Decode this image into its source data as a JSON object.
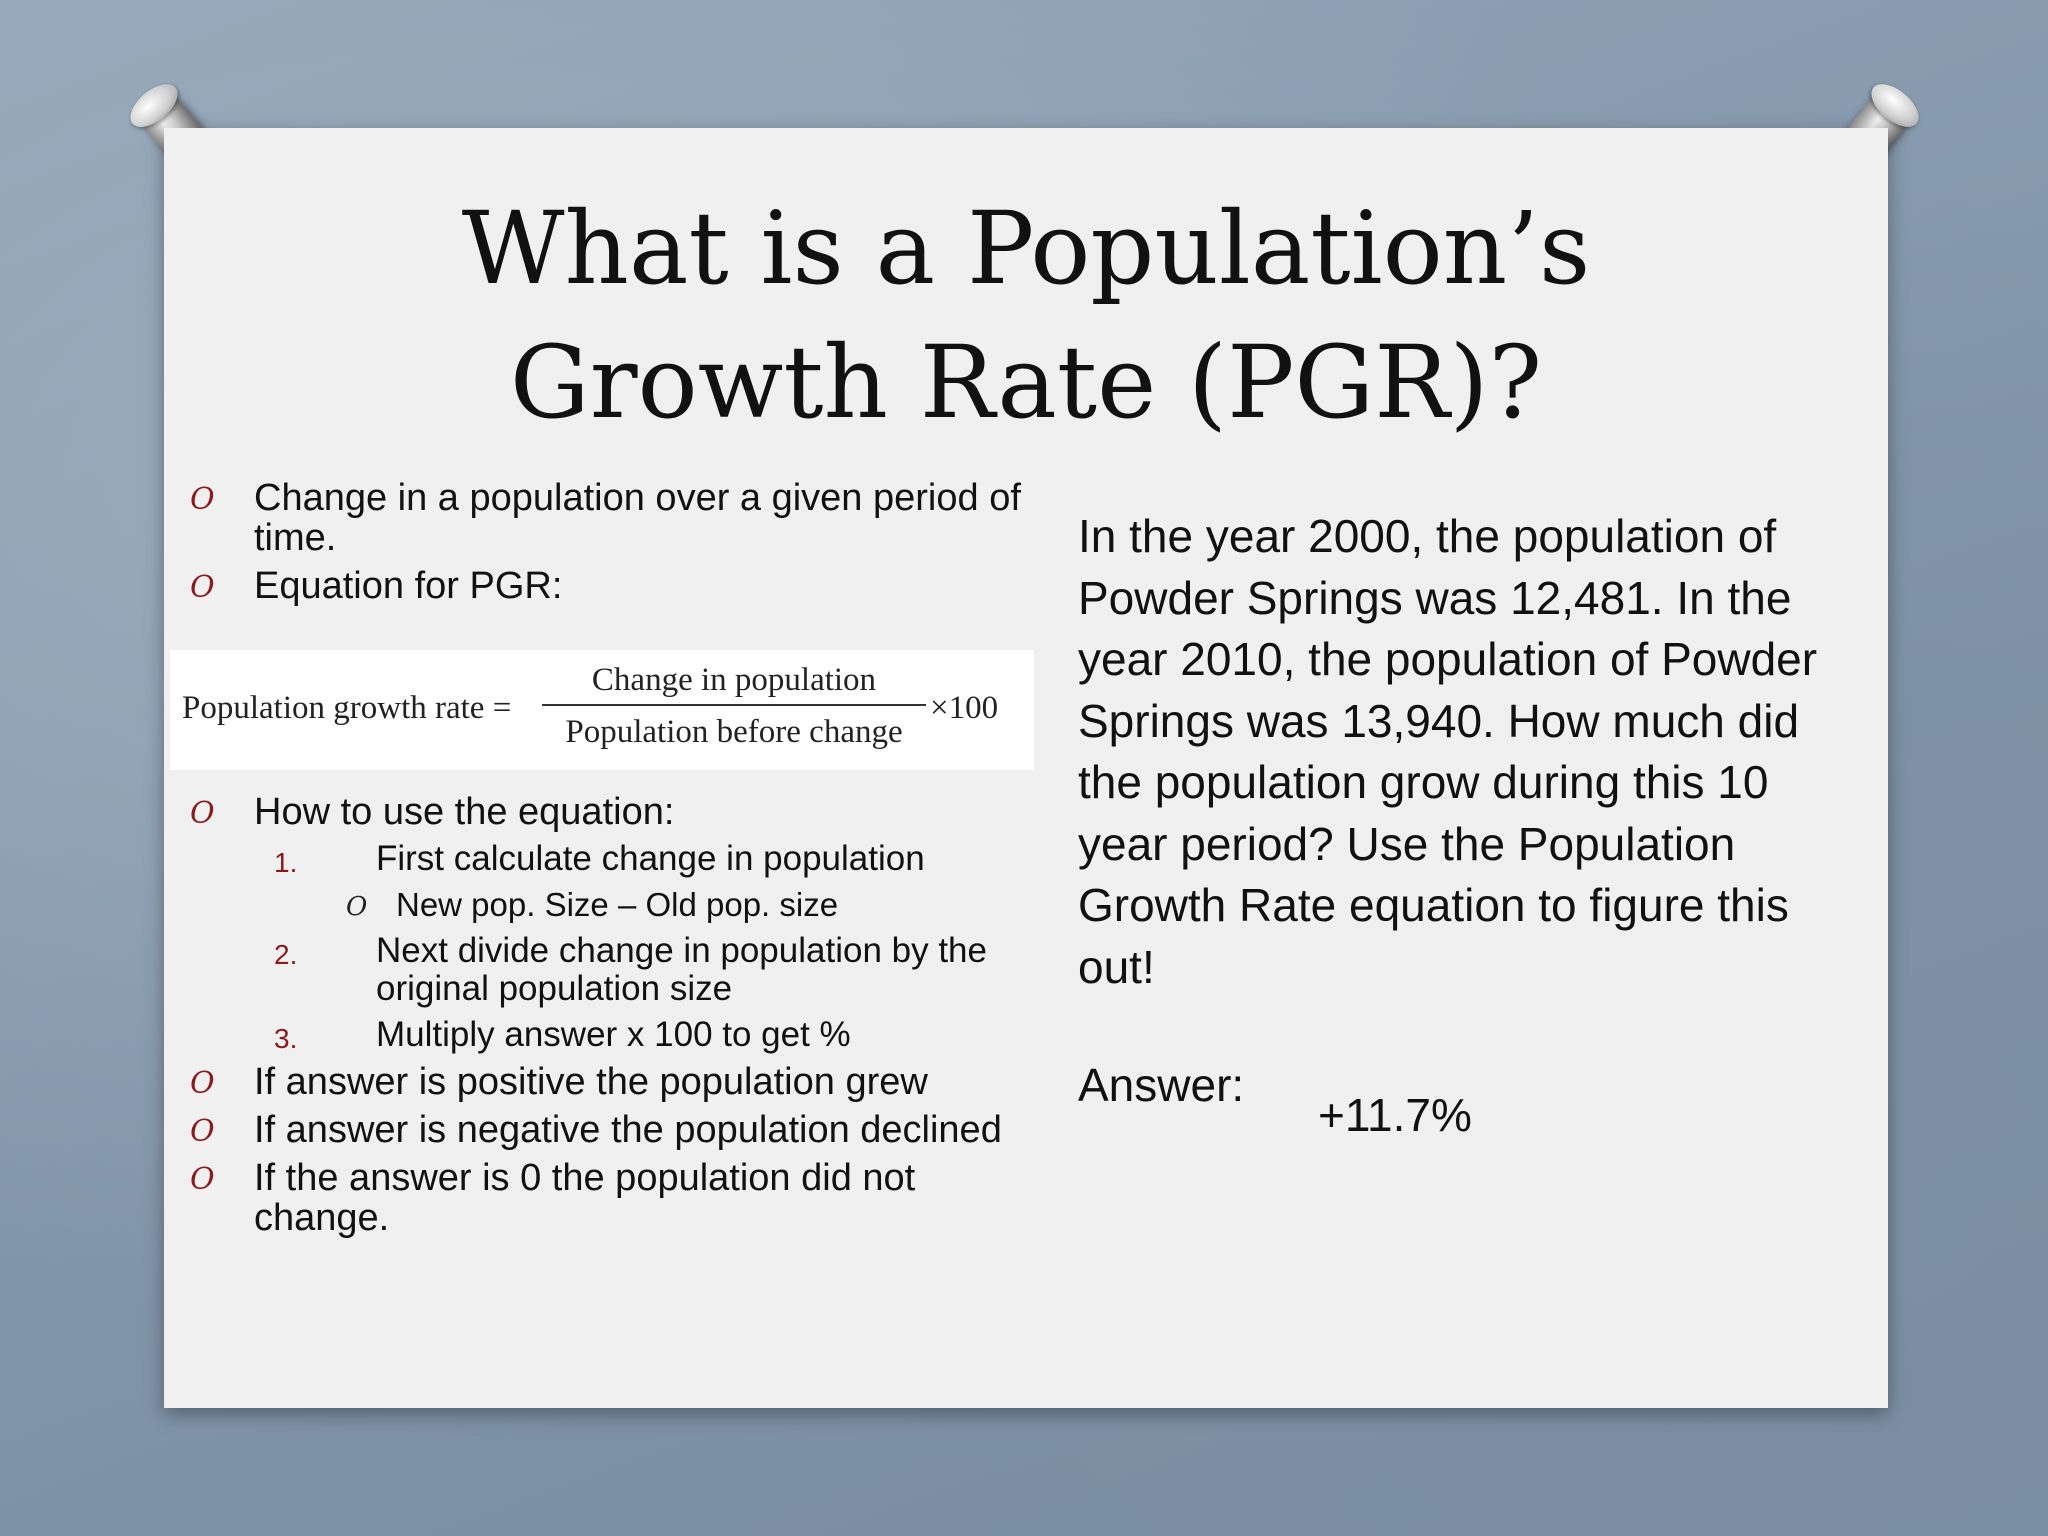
{
  "slide": {
    "title_line1": "What is a Population’s",
    "title_line2": "Growth Rate (PGR)?",
    "bullets_top": [
      {
        "marker": "O",
        "text": "Change in a population over a given period of time."
      },
      {
        "marker": "O",
        "text": "Equation for PGR:"
      }
    ],
    "equation": {
      "lhs": "Population growth rate =",
      "numerator": "Change in population",
      "denominator": "Population before change",
      "multiplier": "×100"
    },
    "how_to": {
      "marker": "O",
      "text": "How to use the equation:"
    },
    "steps": [
      {
        "num": "1.",
        "text": "First calculate change in population"
      },
      {
        "num": "2.",
        "text": "Next divide change in population by the original population size"
      },
      {
        "num": "3.",
        "text": "Multiply answer x 100 to get %"
      }
    ],
    "sub_step": {
      "marker": "O",
      "text": "New pop. Size – Old pop. size"
    },
    "bullets_bottom": [
      {
        "marker": "O",
        "text": "If answer is positive the population grew"
      },
      {
        "marker": "O",
        "text": "If answer is negative the population declined"
      },
      {
        "marker": "O",
        "text": "If the answer is 0 the population did not change."
      }
    ],
    "problem": "In the year 2000, the population of Powder Springs was 12,481. In the year 2010, the population of Powder Springs was 13,940. How much did the population grow during this 10 year period? Use the Population Growth Rate equation to figure this out!",
    "answer_label": "Answer:",
    "answer_value": "+11.7%"
  },
  "colors": {
    "background": "#8a9db0",
    "card": "#f0f0f1",
    "marker": "#8b1a1a",
    "text": "#111111"
  }
}
